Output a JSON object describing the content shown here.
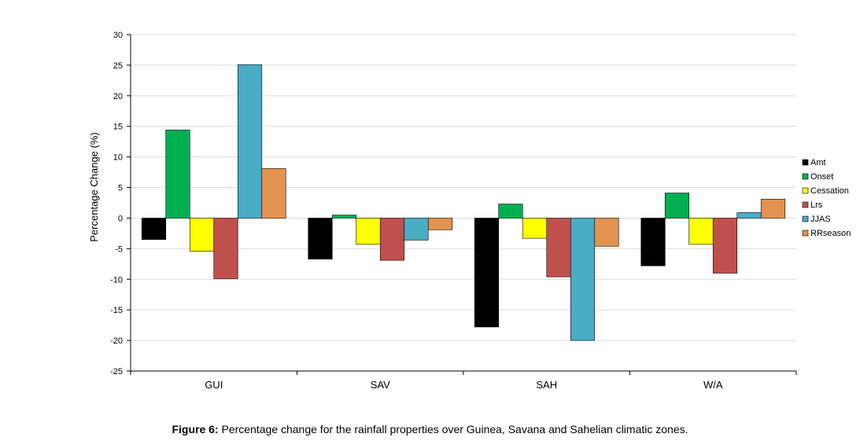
{
  "caption": {
    "label": "Figure 6:",
    "text": " Percentage change for the rainfall properties over Guinea, Savana and Sahelian climatic zones."
  },
  "chart_data": {
    "type": "bar",
    "title": "",
    "xlabel": "",
    "ylabel": "Percentage Change (%)",
    "ylim": [
      -25,
      30
    ],
    "yticks": [
      30,
      25,
      20,
      15,
      10,
      5,
      0,
      -5,
      -10,
      -15,
      -20,
      -25
    ],
    "grid": true,
    "legend_position": "right",
    "categories": [
      "GUI",
      "SAV",
      "SAH",
      "W/A"
    ],
    "series": [
      {
        "name": "Amt",
        "color": "#000000",
        "values": [
          -3.5,
          -6.7,
          -17.8,
          -7.8
        ]
      },
      {
        "name": "Onset",
        "color": "#00b050",
        "values": [
          14.4,
          0.5,
          2.3,
          4.1
        ]
      },
      {
        "name": "Cessation",
        "color": "#ffff00",
        "values": [
          -5.4,
          -4.3,
          -3.3,
          -4.3
        ]
      },
      {
        "name": "Lrs",
        "color": "#c0504d",
        "values": [
          -9.9,
          -6.9,
          -9.6,
          -9.0
        ]
      },
      {
        "name": "JJAS",
        "color": "#4bacc6",
        "values": [
          25.1,
          -3.6,
          -20.0,
          0.9
        ]
      },
      {
        "name": "RRseason",
        "color": "#e39250",
        "values": [
          8.1,
          -1.9,
          -4.6,
          3.1
        ]
      }
    ]
  }
}
